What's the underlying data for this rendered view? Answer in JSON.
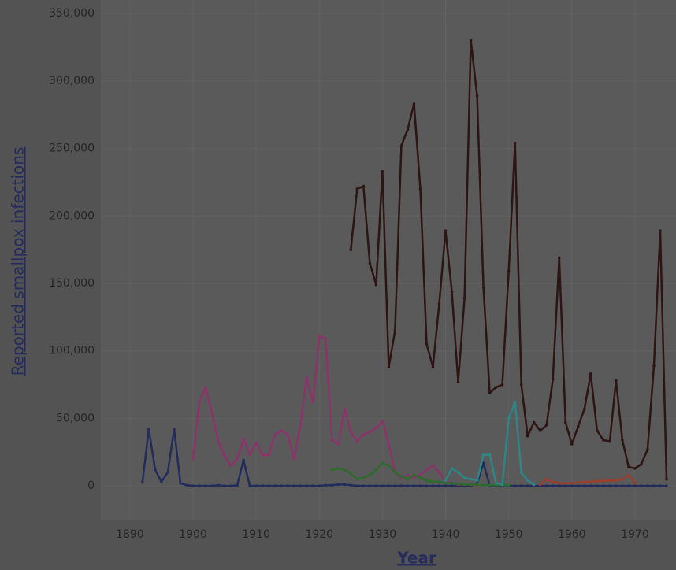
{
  "chart_data": {
    "type": "line",
    "x": [
      1890,
      1891,
      1892,
      1893,
      1894,
      1895,
      1896,
      1897,
      1898,
      1899,
      1900,
      1901,
      1902,
      1903,
      1904,
      1905,
      1906,
      1907,
      1908,
      1909,
      1910,
      1911,
      1912,
      1913,
      1914,
      1915,
      1916,
      1917,
      1918,
      1919,
      1920,
      1921,
      1922,
      1923,
      1924,
      1925,
      1926,
      1927,
      1928,
      1929,
      1930,
      1931,
      1932,
      1933,
      1934,
      1935,
      1936,
      1937,
      1938,
      1939,
      1940,
      1941,
      1942,
      1943,
      1944,
      1945,
      1946,
      1947,
      1948,
      1949,
      1950,
      1951,
      1952,
      1953,
      1954,
      1955,
      1956,
      1957,
      1958,
      1959,
      1960,
      1961,
      1962,
      1963,
      1964,
      1965,
      1966,
      1967,
      1968,
      1969,
      1970,
      1971,
      1972,
      1973,
      1974,
      1975
    ],
    "series": [
      {
        "color": "#232d5c",
        "values": [
          null,
          null,
          3000,
          42000,
          12000,
          3000,
          10000,
          42000,
          2000,
          500,
          0,
          0,
          0,
          0,
          500,
          0,
          0,
          500,
          19000,
          0,
          0,
          0,
          0,
          0,
          0,
          0,
          0,
          0,
          0,
          0,
          0,
          500,
          500,
          1000,
          1000,
          500,
          0,
          0,
          0,
          0,
          0,
          0,
          0,
          0,
          0,
          0,
          0,
          0,
          0,
          0,
          0,
          0,
          0,
          0,
          0,
          2000,
          17000,
          0,
          0,
          0,
          0,
          0,
          0,
          0,
          0,
          0,
          0,
          0,
          0,
          0,
          0,
          0,
          0,
          0,
          0,
          0,
          0,
          0,
          0,
          0,
          0,
          0,
          0,
          0,
          0,
          0
        ]
      },
      {
        "color": "#8a3469",
        "values": [
          null,
          null,
          null,
          null,
          null,
          null,
          null,
          null,
          null,
          null,
          20000,
          62000,
          73000,
          54000,
          33000,
          22000,
          15000,
          20000,
          35000,
          23000,
          32000,
          23000,
          23000,
          38000,
          41000,
          38000,
          20000,
          45000,
          80000,
          62000,
          111000,
          109000,
          34000,
          31000,
          57000,
          40000,
          33000,
          38000,
          40000,
          43000,
          48000,
          31000,
          10000,
          6000,
          8000,
          6000,
          8000,
          12000,
          15000,
          10000,
          3000,
          2000,
          1000,
          1000,
          1000,
          500,
          null,
          null,
          null,
          null,
          null,
          null,
          null,
          null,
          null,
          null,
          null,
          null,
          null,
          null,
          null,
          null,
          null,
          null,
          null,
          null,
          null,
          null,
          null,
          null,
          null,
          null,
          null,
          null,
          null,
          null
        ]
      },
      {
        "color": "#2f6a2f",
        "values": [
          null,
          null,
          null,
          null,
          null,
          null,
          null,
          null,
          null,
          null,
          null,
          null,
          null,
          null,
          null,
          null,
          null,
          null,
          null,
          null,
          null,
          null,
          null,
          null,
          null,
          null,
          null,
          null,
          null,
          null,
          null,
          null,
          12000,
          13000,
          12000,
          9000,
          5000,
          6000,
          8000,
          12000,
          17000,
          15000,
          10000,
          7000,
          5000,
          8000,
          6000,
          4000,
          3000,
          3000,
          2000,
          2000,
          1500,
          1000,
          1000,
          1000,
          500,
          500,
          500,
          500,
          500,
          null,
          null,
          null,
          null,
          null,
          null,
          null,
          null,
          null,
          null,
          null,
          null,
          null,
          null,
          null,
          null,
          null,
          null,
          null,
          null,
          null,
          null,
          null,
          null,
          null
        ]
      },
      {
        "color": "#2e8585",
        "values": [
          null,
          null,
          null,
          null,
          null,
          null,
          null,
          null,
          null,
          null,
          null,
          null,
          null,
          null,
          null,
          null,
          null,
          null,
          null,
          null,
          null,
          null,
          null,
          null,
          null,
          null,
          null,
          null,
          null,
          null,
          null,
          null,
          null,
          null,
          null,
          null,
          null,
          null,
          null,
          null,
          null,
          null,
          null,
          null,
          null,
          null,
          null,
          null,
          null,
          null,
          4000,
          13000,
          10000,
          6000,
          5000,
          4000,
          23000,
          23000,
          2000,
          1000,
          50000,
          62000,
          10000,
          4000,
          1000,
          null,
          null,
          null,
          null,
          null,
          null,
          null,
          null,
          null,
          null,
          null,
          null,
          null,
          null,
          null,
          null,
          null,
          null,
          null,
          null,
          null
        ]
      },
      {
        "color": "#9a3f2e",
        "values": [
          null,
          null,
          null,
          null,
          null,
          null,
          null,
          null,
          null,
          null,
          null,
          null,
          null,
          null,
          null,
          null,
          null,
          null,
          null,
          null,
          null,
          null,
          null,
          null,
          null,
          null,
          null,
          null,
          null,
          null,
          null,
          null,
          null,
          null,
          null,
          null,
          null,
          null,
          null,
          null,
          null,
          null,
          null,
          null,
          null,
          null,
          null,
          null,
          null,
          null,
          null,
          null,
          null,
          null,
          null,
          null,
          null,
          null,
          null,
          null,
          null,
          null,
          null,
          null,
          null,
          1000,
          5000,
          3000,
          2000,
          2000,
          2000,
          2500,
          3000,
          3000,
          3500,
          3500,
          4000,
          4000,
          5000,
          8000,
          2000,
          null,
          null,
          null,
          null,
          null
        ]
      },
      {
        "color": "#2e1515",
        "values": [
          null,
          null,
          null,
          null,
          null,
          null,
          null,
          null,
          null,
          null,
          null,
          null,
          null,
          null,
          null,
          null,
          null,
          null,
          null,
          null,
          null,
          null,
          null,
          null,
          null,
          null,
          null,
          null,
          null,
          null,
          null,
          null,
          null,
          null,
          null,
          175000,
          220000,
          222000,
          165000,
          149000,
          233000,
          88000,
          115000,
          252000,
          264000,
          283000,
          220000,
          105000,
          88000,
          135000,
          189000,
          144000,
          77000,
          139000,
          330000,
          289000,
          147000,
          69000,
          73000,
          75000,
          159000,
          254000,
          75000,
          37000,
          47000,
          41000,
          45000,
          79000,
          169000,
          47000,
          31000,
          44000,
          57000,
          83000,
          41000,
          34000,
          33000,
          78000,
          34000,
          14000,
          13000,
          16000,
          27000,
          89000,
          189000,
          5000
        ]
      }
    ],
    "xlim": [
      1885.4,
      1976.5
    ],
    "xticks": [
      1890,
      1900,
      1910,
      1920,
      1930,
      1940,
      1950,
      1960,
      1970
    ],
    "ylim": [
      -25000,
      360000
    ],
    "yticks": [
      0,
      {
        "value": 50000,
        "label": "50,000"
      },
      {
        "value": 100000,
        "label": "100,000"
      },
      {
        "value": 150000,
        "label": "150,000"
      },
      {
        "value": 200000,
        "label": "200,000"
      },
      {
        "value": 250000,
        "label": "250,000"
      },
      {
        "value": 300000,
        "label": "300,000"
      },
      {
        "value": 350000,
        "label": "350,000"
      }
    ],
    "xlabel": "Year",
    "ylabel": "Reported smallpox infections",
    "grid": true
  }
}
